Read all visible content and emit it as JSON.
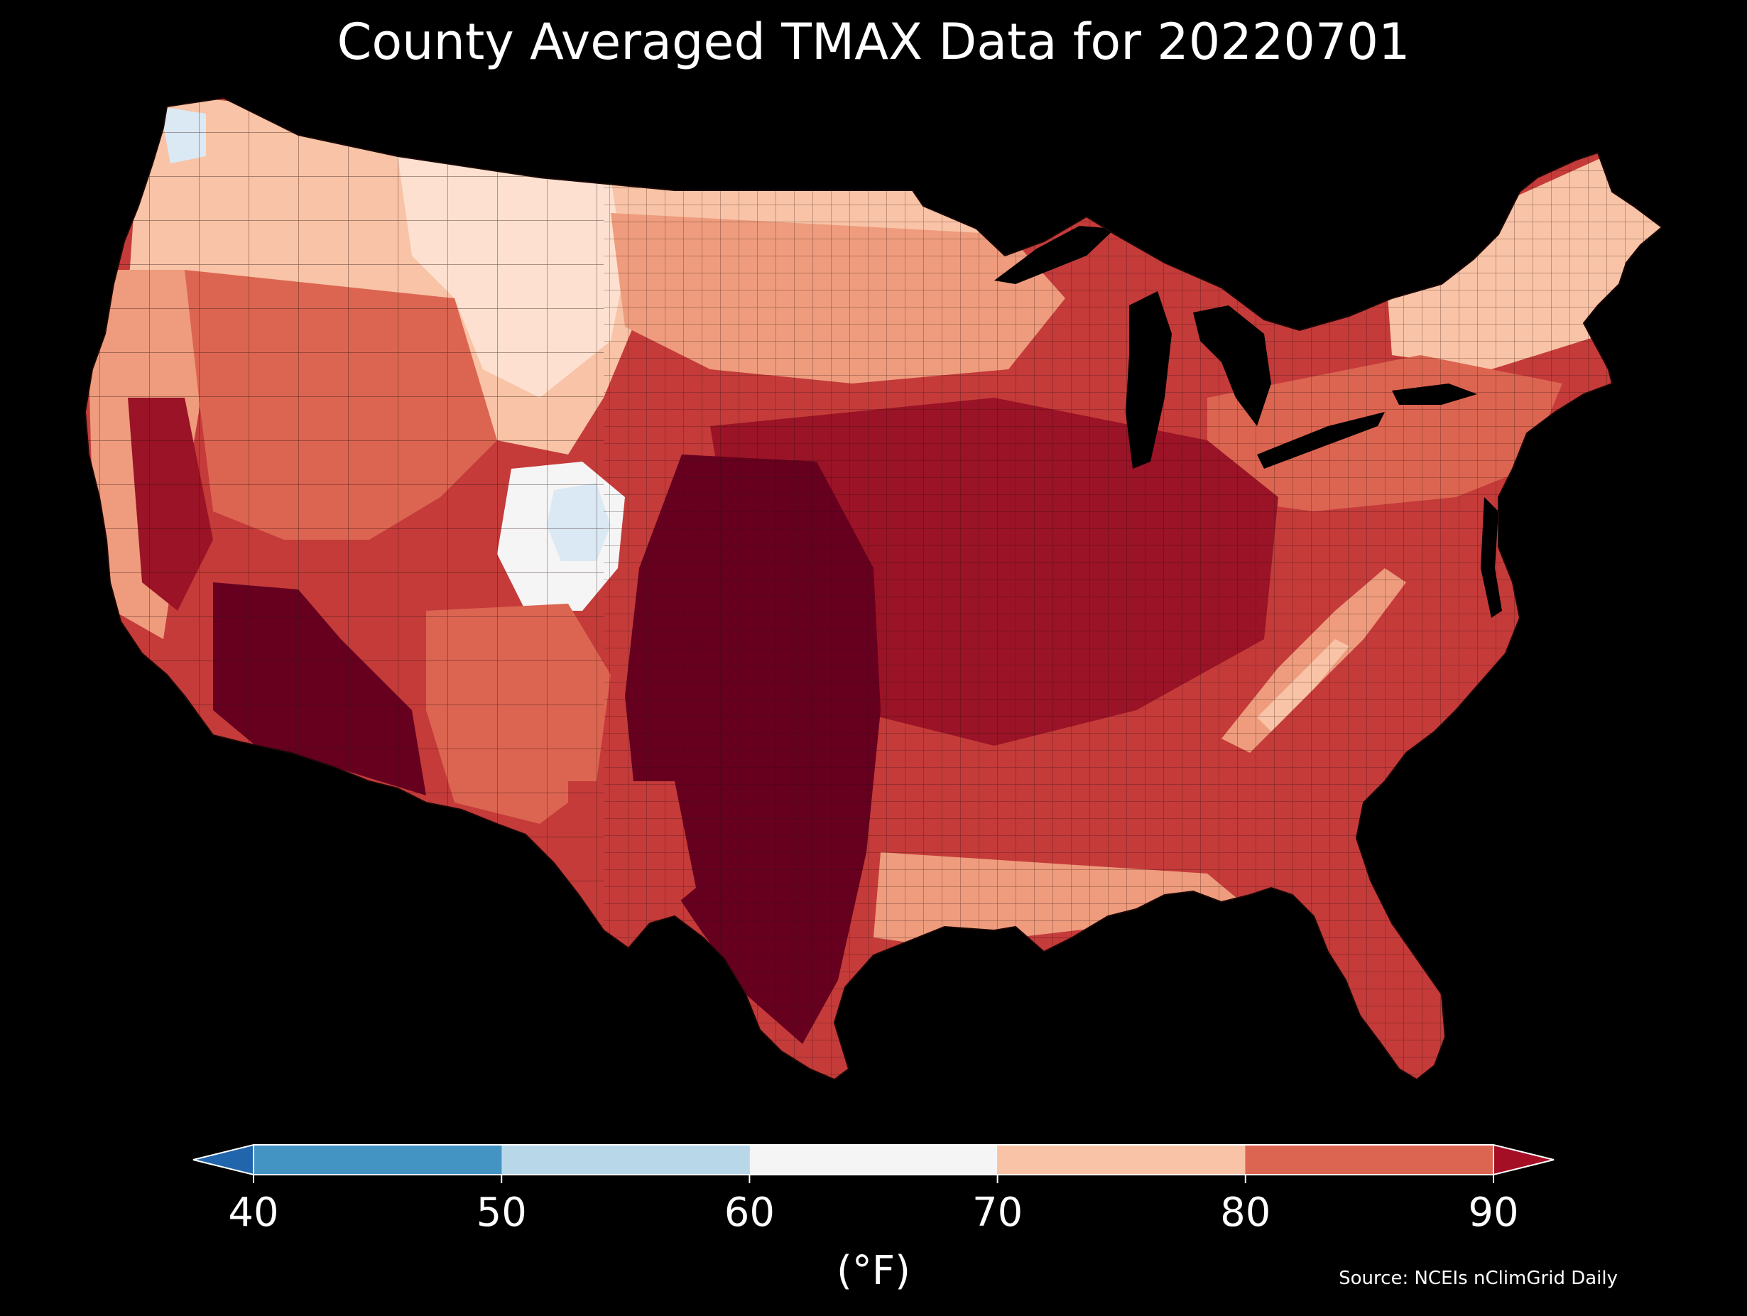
{
  "title": "County Averaged TMAX Data for 20220701",
  "source": "Source: NCEIs nClimGrid Daily",
  "colorbar": {
    "label": "(°F)",
    "ticks": [
      40,
      50,
      60,
      70,
      80,
      90
    ],
    "bins": [
      {
        "from": 40,
        "to": 50,
        "color": "#4393c3"
      },
      {
        "from": 50,
        "to": 60,
        "color": "#b8d8ea"
      },
      {
        "from": 60,
        "to": 70,
        "color": "#f5f5f5"
      },
      {
        "from": 70,
        "to": 80,
        "color": "#f8c3a6"
      },
      {
        "from": 80,
        "to": 90,
        "color": "#dc6551"
      }
    ],
    "under_color": "#2166ac",
    "over_color": "#a50f26"
  },
  "colors": {
    "background": "#000000",
    "county_border": "#3a1a16",
    "deep_red": "#67001f",
    "dark_red": "#9a1326",
    "red": "#c43b3a",
    "salmon_red": "#dc6551",
    "salmon": "#ee9c7d",
    "peach": "#f8c3a6",
    "pale_peach": "#fde0d0",
    "white": "#f5f5f5",
    "pale_blue": "#dbe9f4"
  }
}
